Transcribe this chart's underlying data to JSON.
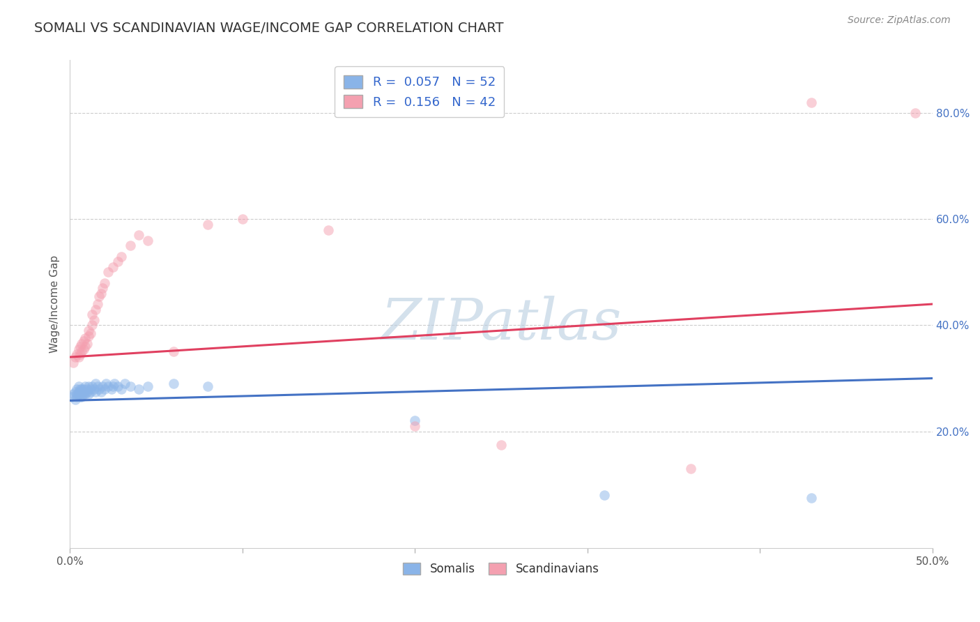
{
  "title": "SOMALI VS SCANDINAVIAN WAGE/INCOME GAP CORRELATION CHART",
  "source": "Source: ZipAtlas.com",
  "ylabel": "Wage/Income Gap",
  "xlim": [
    0.0,
    0.5
  ],
  "ylim": [
    -0.02,
    0.9
  ],
  "ytick_vals": [
    0.2,
    0.4,
    0.6,
    0.8
  ],
  "grid_color": "#cccccc",
  "background_color": "#ffffff",
  "somali_color": "#8ab4e8",
  "scandinavian_color": "#f4a0b0",
  "somali_line_color": "#4472c4",
  "scandinavian_line_color": "#e04060",
  "watermark_text": "ZIPatlas",
  "watermark_color": "#b8cde0",
  "legend_R_somali": "0.057",
  "legend_N_somali": "52",
  "legend_R_scandi": "0.156",
  "legend_N_scandi": "42",
  "somali_x": [
    0.001,
    0.002,
    0.003,
    0.003,
    0.004,
    0.004,
    0.004,
    0.005,
    0.005,
    0.005,
    0.006,
    0.006,
    0.006,
    0.007,
    0.007,
    0.007,
    0.008,
    0.008,
    0.008,
    0.009,
    0.009,
    0.01,
    0.01,
    0.011,
    0.011,
    0.012,
    0.012,
    0.013,
    0.014,
    0.015,
    0.015,
    0.016,
    0.017,
    0.018,
    0.019,
    0.02,
    0.021,
    0.022,
    0.024,
    0.025,
    0.026,
    0.028,
    0.03,
    0.032,
    0.035,
    0.04,
    0.045,
    0.06,
    0.08,
    0.2,
    0.31,
    0.43
  ],
  "somali_y": [
    0.265,
    0.27,
    0.275,
    0.26,
    0.28,
    0.27,
    0.265,
    0.275,
    0.27,
    0.285,
    0.28,
    0.27,
    0.265,
    0.28,
    0.275,
    0.265,
    0.28,
    0.27,
    0.275,
    0.285,
    0.27,
    0.28,
    0.275,
    0.285,
    0.27,
    0.28,
    0.275,
    0.285,
    0.28,
    0.29,
    0.275,
    0.285,
    0.28,
    0.275,
    0.285,
    0.28,
    0.29,
    0.285,
    0.28,
    0.285,
    0.29,
    0.285,
    0.28,
    0.29,
    0.285,
    0.28,
    0.285,
    0.29,
    0.285,
    0.22,
    0.08,
    0.075
  ],
  "scandi_x": [
    0.002,
    0.003,
    0.004,
    0.005,
    0.005,
    0.006,
    0.006,
    0.007,
    0.007,
    0.008,
    0.008,
    0.009,
    0.009,
    0.01,
    0.011,
    0.011,
    0.012,
    0.013,
    0.013,
    0.014,
    0.015,
    0.016,
    0.017,
    0.018,
    0.019,
    0.02,
    0.022,
    0.025,
    0.028,
    0.03,
    0.035,
    0.04,
    0.045,
    0.06,
    0.08,
    0.1,
    0.15,
    0.2,
    0.25,
    0.36,
    0.43,
    0.49
  ],
  "scandi_y": [
    0.33,
    0.34,
    0.345,
    0.34,
    0.355,
    0.345,
    0.36,
    0.35,
    0.365,
    0.355,
    0.37,
    0.36,
    0.375,
    0.365,
    0.38,
    0.39,
    0.385,
    0.4,
    0.42,
    0.41,
    0.43,
    0.44,
    0.455,
    0.46,
    0.47,
    0.48,
    0.5,
    0.51,
    0.52,
    0.53,
    0.55,
    0.57,
    0.56,
    0.35,
    0.59,
    0.6,
    0.58,
    0.21,
    0.175,
    0.13,
    0.82,
    0.8
  ]
}
